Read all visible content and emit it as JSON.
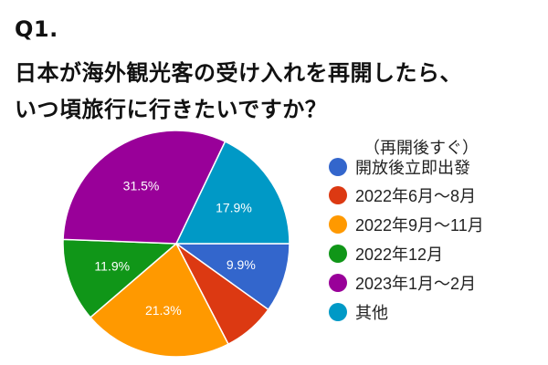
{
  "title": {
    "line1": "Q1.",
    "line2": "日本が海外観光客の受け入れを再開したら、",
    "line3": "いつ頃旅行に行きたいですか？"
  },
  "chart_data": {
    "type": "pie",
    "title": "Q1. 日本が海外観光客の受け入れを再開したら、いつ頃旅行に行きたいですか？",
    "legend_header": "（再開後すぐ）",
    "legend_position": "right",
    "start": "3 o'clock, clockwise",
    "slices": [
      {
        "label": "開放後立即出發",
        "value": 9.9,
        "display": "9.9%",
        "color": "#3366cc"
      },
      {
        "label": "2022年6月～8月",
        "value": 7.5,
        "display": "",
        "color": "#dc3912"
      },
      {
        "label": "2022年9月～11月",
        "value": 21.3,
        "display": "21.3%",
        "color": "#ff9900"
      },
      {
        "label": "2022年12月",
        "value": 11.9,
        "display": "11.9%",
        "color": "#109618"
      },
      {
        "label": "2023年1月～2月",
        "value": 31.5,
        "display": "31.5%",
        "color": "#990099"
      },
      {
        "label": "其他",
        "value": 17.9,
        "display": "17.9%",
        "color": "#0099c6"
      }
    ]
  }
}
